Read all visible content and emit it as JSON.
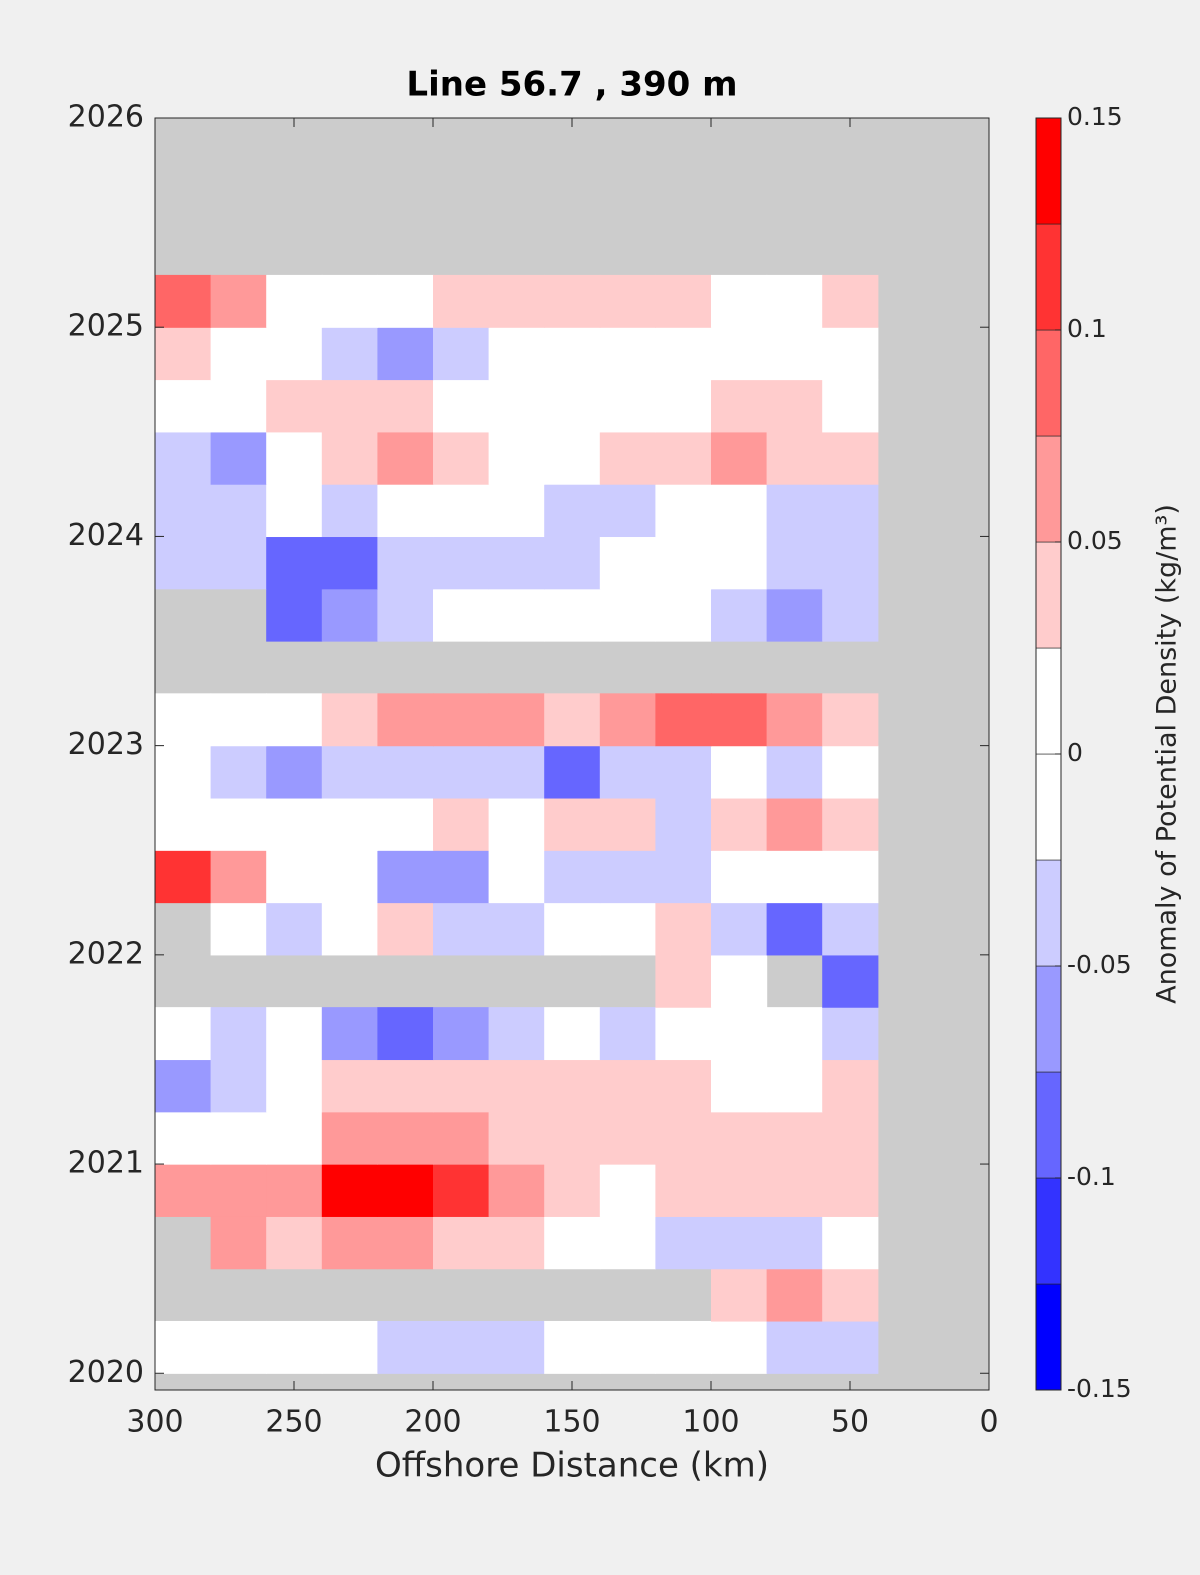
{
  "chart_data": {
    "type": "contour",
    "title": "Line 56.7 , 390 m",
    "xlabel": "Offshore Distance (km)",
    "colorbar_label": "Anomaly of Potential Density (kg/m³)",
    "xlim": [
      300,
      0
    ],
    "xticks": [
      300,
      250,
      200,
      150,
      100,
      50,
      0
    ],
    "ylim": [
      2019.92,
      2026
    ],
    "yticks": [
      2020,
      2021,
      2022,
      2023,
      2024,
      2025,
      2026
    ],
    "missing_color": "#cccccc",
    "levels": [
      -0.15,
      -0.125,
      -0.1,
      -0.075,
      -0.05,
      -0.025,
      0,
      0.025,
      0.05,
      0.075,
      0.1,
      0.125,
      0.15
    ],
    "colors": [
      "#0000ff",
      "#3333ff",
      "#6666ff",
      "#9999ff",
      "#ccccff",
      "#ffffff",
      "#ffffff",
      "#ffcccc",
      "#ff9999",
      "#ff6666",
      "#ff3333",
      "#ff0000"
    ],
    "colorbar_ticks": [
      -0.15,
      -0.1,
      -0.05,
      0,
      0.05,
      0.1,
      0.15
    ],
    "x": [
      290,
      270,
      250,
      230,
      210,
      190,
      170,
      150,
      130,
      110,
      90,
      70,
      50
    ],
    "y": [
      2020.125,
      2020.375,
      2020.625,
      2020.875,
      2021.125,
      2021.375,
      2021.625,
      2021.875,
      2022.125,
      2022.375,
      2022.625,
      2022.875,
      2023.125,
      2023.375,
      2023.625,
      2023.875,
      2024.125,
      2024.375,
      2024.625,
      2024.875,
      2025.125
    ],
    "z": [
      [
        0,
        0,
        0,
        0.02,
        -0.03,
        -0.05,
        -0.03,
        0,
        0,
        0,
        0,
        -0.03,
        -0.05
      ],
      [
        null,
        null,
        null,
        null,
        null,
        null,
        null,
        null,
        null,
        null,
        0.04,
        0.05,
        0.03
      ],
      [
        null,
        0.07,
        0.04,
        0.05,
        0.05,
        0.04,
        0.04,
        0,
        0,
        -0.03,
        -0.03,
        -0.03,
        0
      ],
      [
        0.05,
        0.05,
        0.07,
        0.13,
        0.14,
        0.12,
        0.06,
        0.04,
        0,
        0.03,
        0.03,
        0.03,
        0.03
      ],
      [
        0,
        0,
        0,
        0.05,
        0.07,
        0.07,
        0.04,
        0.03,
        0.03,
        0.03,
        0.03,
        0.03,
        0.03
      ],
      [
        -0.07,
        -0.05,
        0,
        0.03,
        0.04,
        0.03,
        0.03,
        0.03,
        0.03,
        0.03,
        0.02,
        0,
        0.03
      ],
      [
        -0.02,
        -0.03,
        0,
        -0.06,
        -0.08,
        -0.06,
        -0.03,
        -0.02,
        -0.03,
        0,
        0.02,
        0,
        -0.04
      ],
      [
        null,
        null,
        null,
        null,
        null,
        null,
        null,
        null,
        null,
        0.03,
        0.02,
        null,
        -0.08
      ],
      [
        null,
        -0.02,
        -0.03,
        0,
        0.04,
        -0.03,
        -0.03,
        0,
        0.02,
        0.04,
        -0.05,
        -0.08,
        -0.03
      ],
      [
        0.1,
        0.05,
        0.02,
        -0.02,
        -0.07,
        -0.06,
        0,
        -0.04,
        -0.03,
        -0.03,
        0,
        0,
        0
      ],
      [
        0,
        0,
        0,
        0,
        0.02,
        0.03,
        0,
        0.03,
        0.03,
        -0.03,
        0.03,
        0.06,
        0.03
      ],
      [
        0,
        -0.04,
        -0.06,
        -0.03,
        -0.04,
        -0.03,
        -0.05,
        -0.08,
        -0.05,
        -0.04,
        0,
        -0.03,
        0
      ],
      [
        0,
        0,
        0,
        0.03,
        0.05,
        0.07,
        0.05,
        0.04,
        0.06,
        0.08,
        0.08,
        0.06,
        0.03
      ],
      [
        null,
        null,
        null,
        null,
        null,
        null,
        null,
        null,
        null,
        null,
        null,
        null,
        null
      ],
      [
        null,
        null,
        -0.09,
        -0.06,
        -0.04,
        -0.02,
        0,
        0,
        0,
        0,
        -0.04,
        -0.07,
        -0.04
      ],
      [
        -0.03,
        -0.04,
        -0.08,
        -0.08,
        -0.05,
        -0.03,
        -0.03,
        -0.03,
        -0.01,
        -0.02,
        -0.02,
        -0.03,
        -0.04
      ],
      [
        -0.03,
        -0.04,
        -0.02,
        -0.03,
        -0.01,
        0,
        0,
        -0.03,
        -0.03,
        -0.01,
        0,
        -0.04,
        -0.05
      ],
      [
        -0.04,
        -0.06,
        0,
        0.04,
        0.06,
        0.04,
        0,
        0,
        0.03,
        0.04,
        0.07,
        0.04,
        0.04
      ],
      [
        0,
        0,
        0.03,
        0.03,
        0.03,
        0.02,
        0,
        0,
        0,
        0.02,
        0.04,
        0.03,
        0.02
      ],
      [
        0.04,
        0.02,
        0,
        -0.03,
        -0.06,
        -0.04,
        0,
        0,
        0,
        0,
        0,
        0,
        0.02
      ],
      [
        0.09,
        0.06,
        0.02,
        0,
        0.01,
        0.03,
        0.03,
        0.03,
        0.03,
        0.03,
        0.02,
        0.01,
        0.03
      ]
    ]
  }
}
